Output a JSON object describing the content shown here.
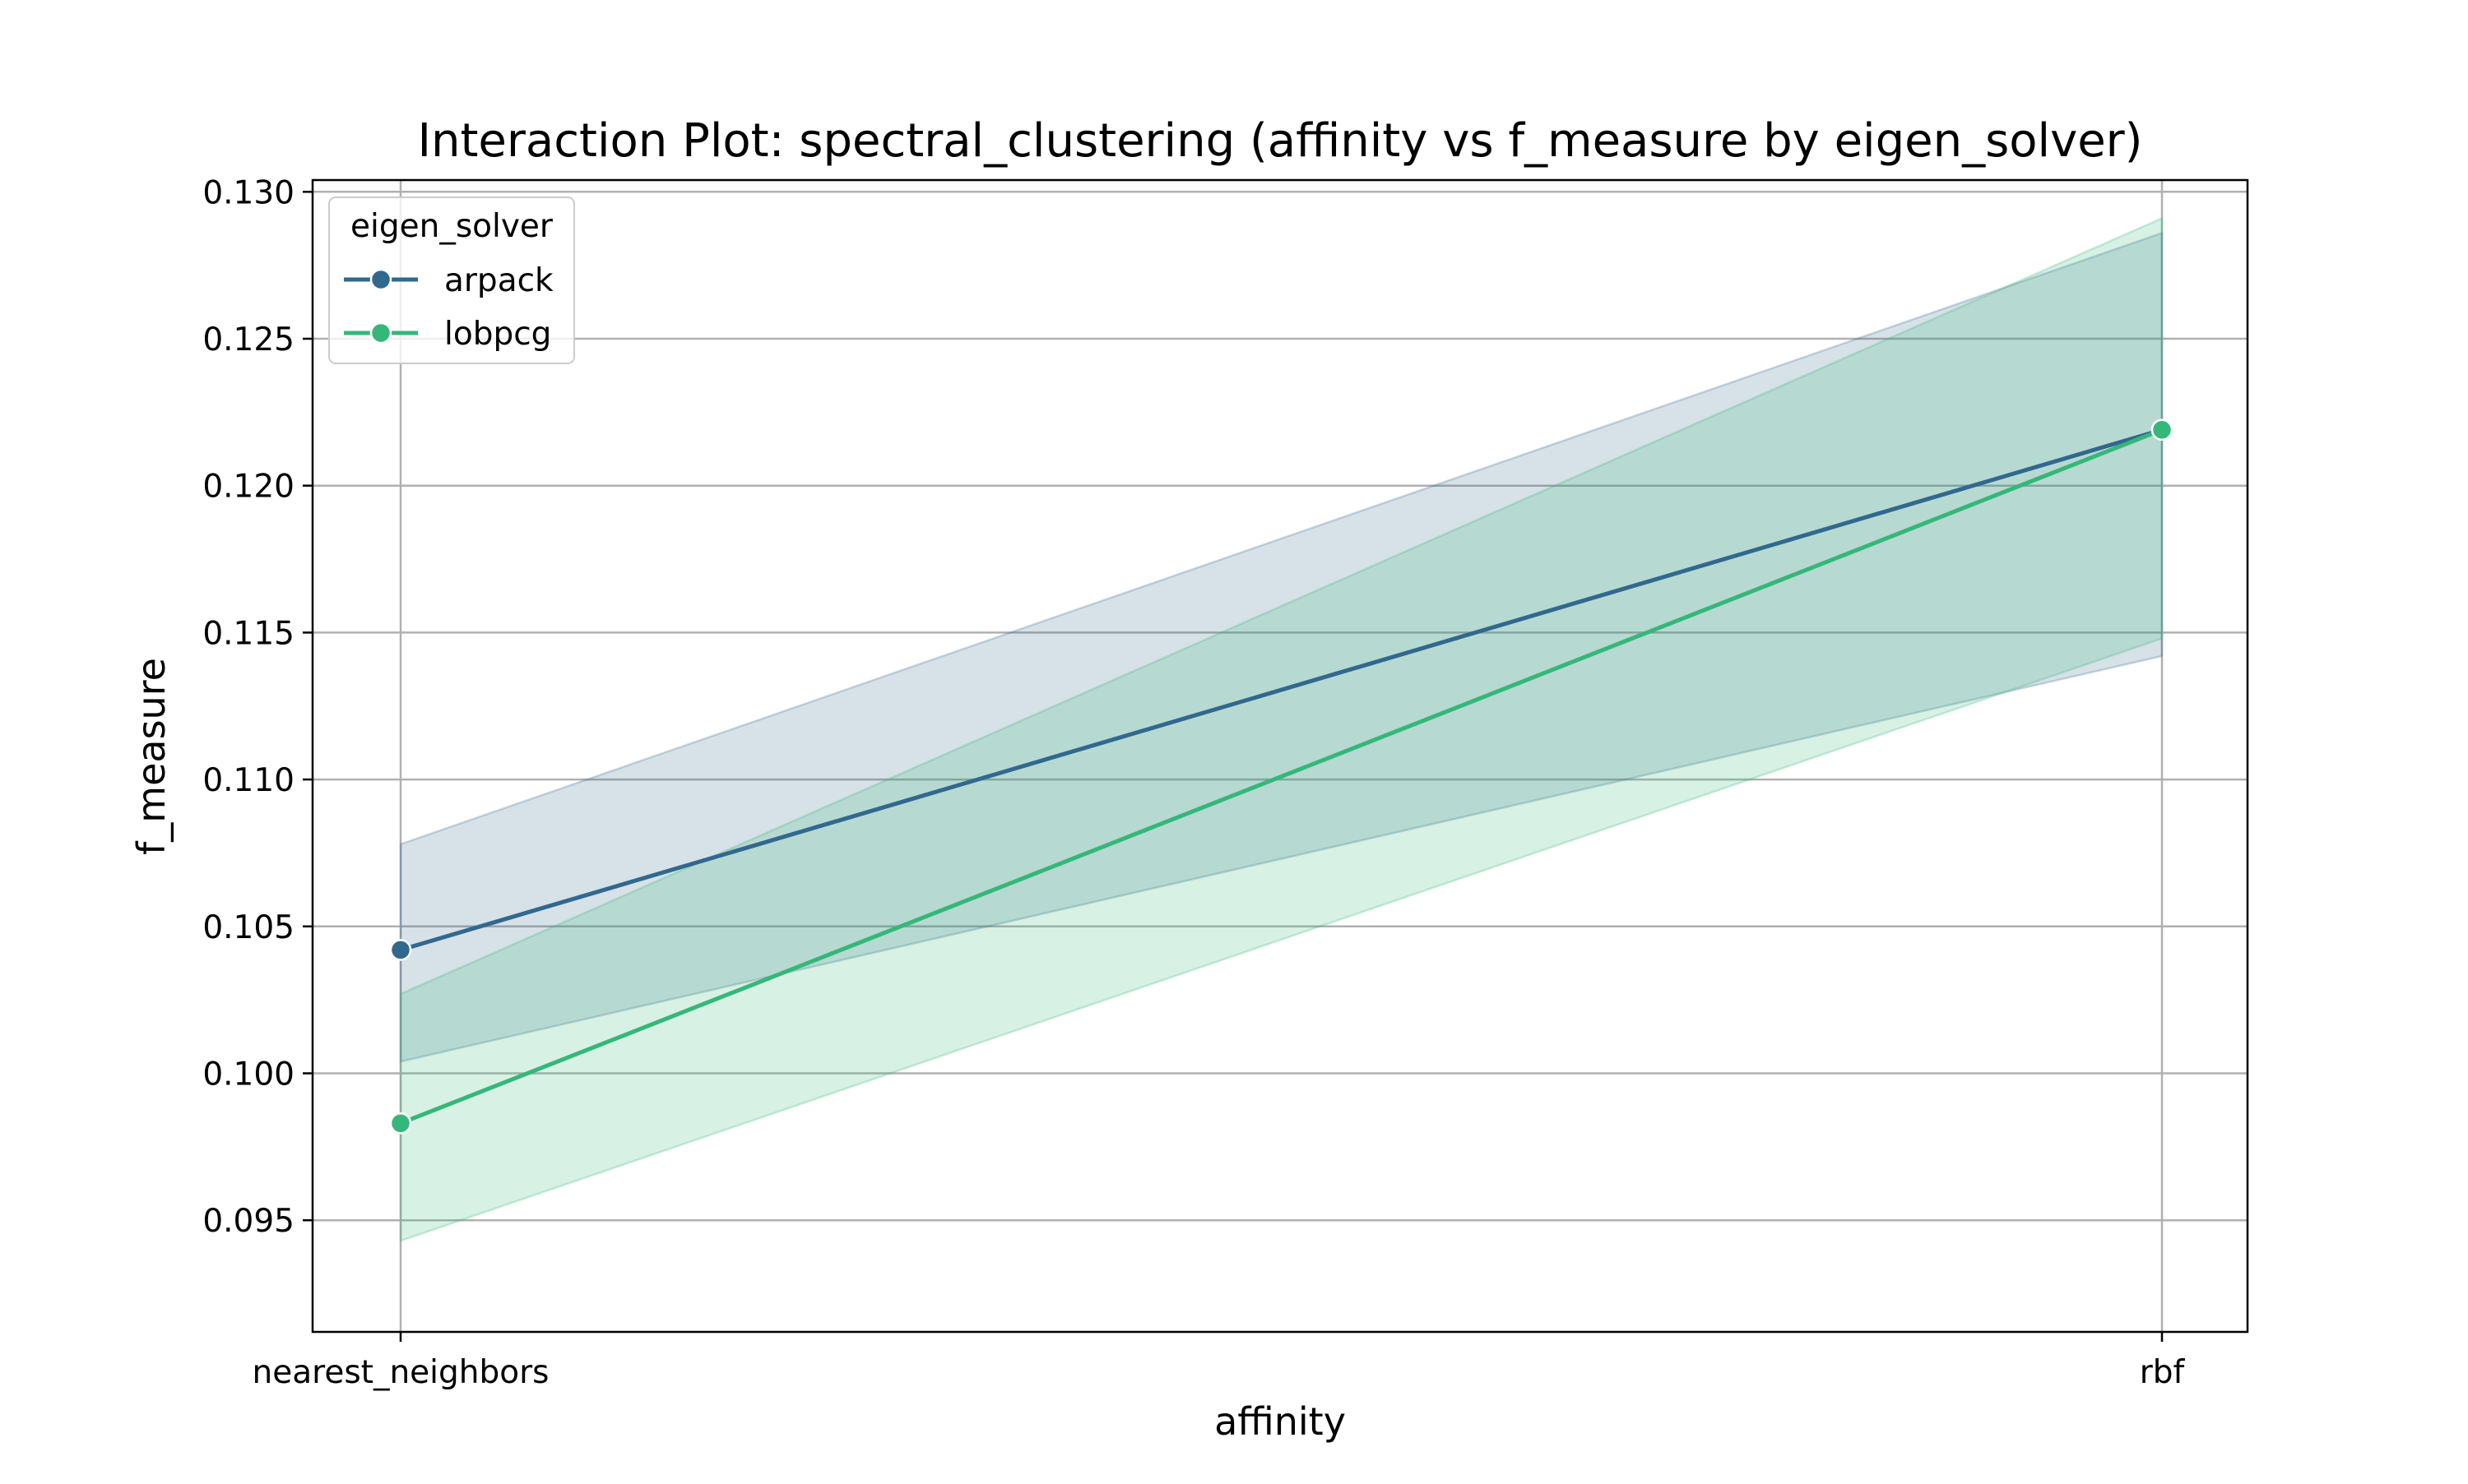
{
  "chart_data": {
    "type": "line",
    "title": "Interaction Plot: spectral_clustering (affinity vs f_measure by eigen_solver)",
    "xlabel": "affinity",
    "ylabel": "f_measure",
    "categories": [
      "nearest_neighbors",
      "rbf"
    ],
    "ylim": [
      0.0912,
      0.1304
    ],
    "yticks": [
      0.095,
      0.1,
      0.105,
      0.11,
      0.115,
      0.12,
      0.125,
      0.13
    ],
    "ytick_labels": [
      "0.095",
      "0.100",
      "0.105",
      "0.110",
      "0.115",
      "0.120",
      "0.125",
      "0.130"
    ],
    "grid": true,
    "legend": {
      "title": "eigen_solver",
      "placement": "top-left"
    },
    "series": [
      {
        "name": "arpack",
        "color": "#31688e",
        "values": [
          0.1042,
          0.1219
        ],
        "ci_lower": [
          0.1004,
          0.1142
        ],
        "ci_upper": [
          0.1078,
          0.1286
        ]
      },
      {
        "name": "lobpcg",
        "color": "#35b779",
        "values": [
          0.0983,
          0.1219
        ],
        "ci_lower": [
          0.0943,
          0.1148
        ],
        "ci_upper": [
          0.1027,
          0.1291
        ]
      }
    ]
  }
}
